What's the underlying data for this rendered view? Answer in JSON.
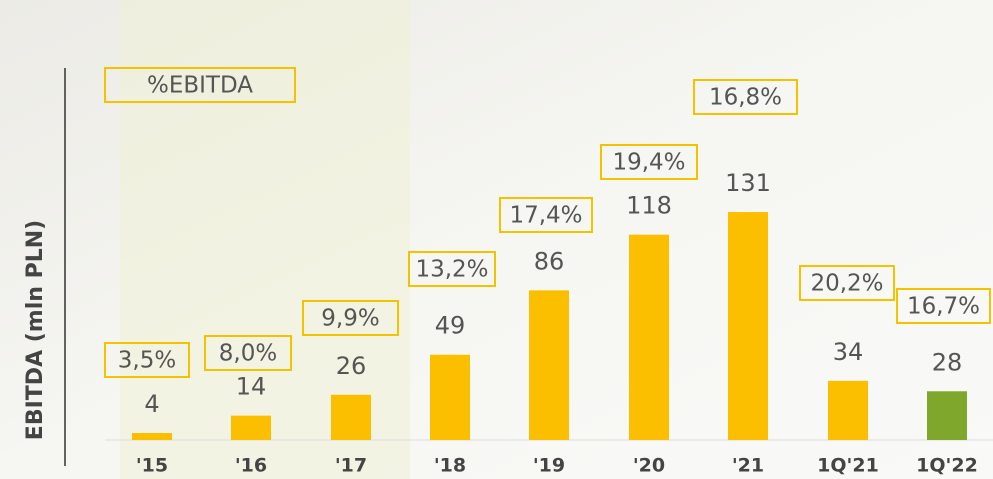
{
  "chart_data": {
    "type": "bar",
    "y_label": "EBITDA (mln PLN)",
    "annotation_title": "%EBITDA",
    "categories": [
      "'15",
      "'16",
      "'17",
      "'18",
      "'19",
      "'20",
      "'21",
      "1Q'21",
      "1Q'22"
    ],
    "values": [
      4,
      14,
      26,
      49,
      86,
      118,
      131,
      34,
      28
    ],
    "colors": [
      "#fbbf00",
      "#fbbf00",
      "#fbbf00",
      "#fbbf00",
      "#fbbf00",
      "#fbbf00",
      "#fbbf00",
      "#fbbf00",
      "#7ea72b"
    ],
    "annotations": [
      "3,5%",
      "8,0%",
      "9,9%",
      "13,2%",
      "17,4%",
      "19,4%",
      "16,8%",
      "20,2%",
      "16,7%"
    ]
  }
}
